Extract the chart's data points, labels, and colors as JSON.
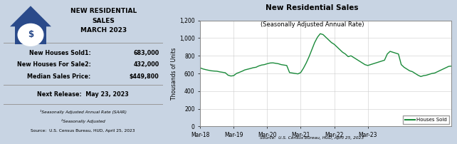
{
  "left_panel": {
    "bg_color": "#dce6f1",
    "border_color": "#aaaaaa",
    "title_lines": [
      "NEW RESIDENTIAL",
      "SALES",
      "MARCH 2023"
    ],
    "stats": [
      {
        "label": "New Houses Sold",
        "sup": "1",
        "value": "683,000"
      },
      {
        "label": "New Houses For Sale",
        "sup": "2",
        "value": "432,000"
      },
      {
        "label": "Median Sales Price",
        "sup": "",
        "value": "$449,800"
      }
    ],
    "next_release": "Next Release:  May 23, 2023",
    "footnotes": [
      "¹Seasonally Adjusted Annual Rate (SAAR)",
      "²Seasonally Adjusted",
      "Source:  U.S. Census Bureau, HUD, April 25, 2023"
    ]
  },
  "right_panel": {
    "bg_color": "#ffffff",
    "border_color": "#aaaaaa",
    "title": "New Residential Sales",
    "subtitle": "(Seasonally Adjusted Annual Rate)",
    "ylabel": "Thousands of Units",
    "source": "Source:  U.S. Census Bureau, HUD, April 25, 2023",
    "line_color": "#1a8a3a",
    "line_label": "Houses Sold",
    "yticks": [
      0,
      200,
      400,
      600,
      800,
      1000,
      1200
    ],
    "xlabels": [
      "Mar-18",
      "Mar-19",
      "Mar-20",
      "Mar-21",
      "Mar-22",
      "Mar-23"
    ],
    "data": [
      663,
      651,
      643,
      636,
      630,
      627,
      625,
      618,
      613,
      608,
      580,
      571,
      575,
      600,
      612,
      625,
      640,
      648,
      656,
      665,
      670,
      685,
      695,
      700,
      710,
      718,
      720,
      715,
      710,
      700,
      695,
      690,
      610,
      605,
      600,
      595,
      610,
      660,
      720,
      790,
      870,
      950,
      1010,
      1050,
      1040,
      1010,
      980,
      950,
      930,
      900,
      870,
      840,
      820,
      790,
      800,
      780,
      760,
      740,
      720,
      700,
      690,
      700,
      710,
      720,
      730,
      740,
      750,
      820,
      850,
      840,
      830,
      820,
      700,
      670,
      650,
      630,
      620,
      600,
      580,
      565,
      575,
      580,
      590,
      600,
      605,
      620,
      635,
      650,
      665,
      680,
      683
    ]
  },
  "house_color": "#2a4a8a",
  "outer_bg": "#c8d4e3"
}
